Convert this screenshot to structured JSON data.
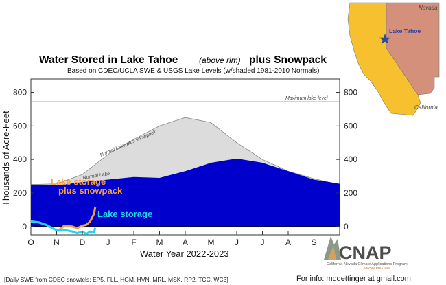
{
  "chart_data": {
    "type": "area",
    "title": "Water Stored in Lake Tahoe",
    "title_qualifier": "(above rim)",
    "title_suffix": "plus Snowpack",
    "subtitle": "Based on CDEC/UCLA SWE & USGS Lake Levels (w/shaded 1981-2010 Normals)",
    "xlabel": "Water Year 2022-2023",
    "ylabel": "Thousands of Acre-Feet",
    "ylim": [
      -50,
      880
    ],
    "xlim": [
      0,
      12
    ],
    "x_tick_labels": [
      "O",
      "N",
      "D",
      "J",
      "F",
      "M",
      "A",
      "M",
      "J",
      "J",
      "A",
      "S"
    ],
    "y_ticks": [
      0,
      200,
      400,
      600,
      800
    ],
    "grid": false,
    "reference_line": {
      "label": "Maximum lake level",
      "value": 745
    },
    "series": [
      {
        "name": "Normal Lake plus snowpack",
        "color": "#dcdcdc",
        "x": [
          0,
          1,
          2,
          3,
          4,
          5,
          6,
          7,
          8,
          9,
          10,
          11,
          12
        ],
        "values": [
          250,
          255,
          310,
          430,
          520,
          600,
          650,
          620,
          500,
          400,
          330,
          285,
          250
        ]
      },
      {
        "name": "Normal Lake",
        "color": "#0000cc",
        "x": [
          0,
          1,
          2,
          3,
          4,
          5,
          6,
          7,
          8,
          9,
          10,
          11,
          12
        ],
        "values": [
          250,
          245,
          265,
          280,
          295,
          290,
          330,
          380,
          405,
          380,
          330,
          280,
          255
        ]
      },
      {
        "name": "Lake storage plus snowpack",
        "color": "#f7a040",
        "x": [
          0,
          0.3,
          0.6,
          0.9,
          1.05,
          1.3,
          1.6,
          1.8,
          2.0,
          2.15,
          2.3,
          2.45,
          2.5
        ],
        "values": [
          30,
          25,
          10,
          -15,
          -25,
          5,
          0,
          -10,
          5,
          10,
          30,
          75,
          115
        ]
      },
      {
        "name": "Lake storage",
        "color": "#1fd6f2",
        "x": [
          0,
          0.3,
          0.6,
          0.9,
          1.05,
          1.3,
          1.6,
          1.8,
          2.0,
          2.15,
          2.3,
          2.45,
          2.5
        ],
        "values": [
          30,
          25,
          10,
          -15,
          -25,
          -20,
          -30,
          -40,
          -30,
          -45,
          -30,
          -35,
          -8
        ]
      }
    ],
    "annotations": [
      "Normal Lake plus snowpack",
      "Normal Lake",
      "Lake storage plus snowpack",
      "Lake storage",
      "Maximum lake level"
    ]
  },
  "labels": {
    "lake_storage_snow_line1": "Lake storage",
    "lake_storage_snow_line2": "plus snowpack",
    "lake_storage": "Lake storage",
    "normal_snow": "Normal Lake plus snowpack",
    "normal_lake": "Normal Lake",
    "max_level": "Maximum lake level"
  },
  "footnote": "[Daily SWE from CDEC snowtels: EP5, FLL, HGM, HVN, MRL, MSK, RP2, TCC, WC3]",
  "contact": "For info: mddettinger at gmail.com",
  "map": {
    "nevada": "Nevada",
    "california": "California",
    "lake_tahoe": "Lake Tahoe",
    "california_color": "#f7c02f",
    "nevada_color": "#d4907a",
    "star_color": "#2a4aa8"
  },
  "logo": {
    "name": "CNAP",
    "line1": "California-Nevada Climate Applications Program",
    "line2": "A NOAA RISA team"
  },
  "colors": {
    "normal_snowpack_fill": "#dcdcdc",
    "normal_lake_fill": "#0000cc",
    "lake_storage_snowpack": "#f7a040",
    "lake_storage": "#1fd6f2"
  }
}
